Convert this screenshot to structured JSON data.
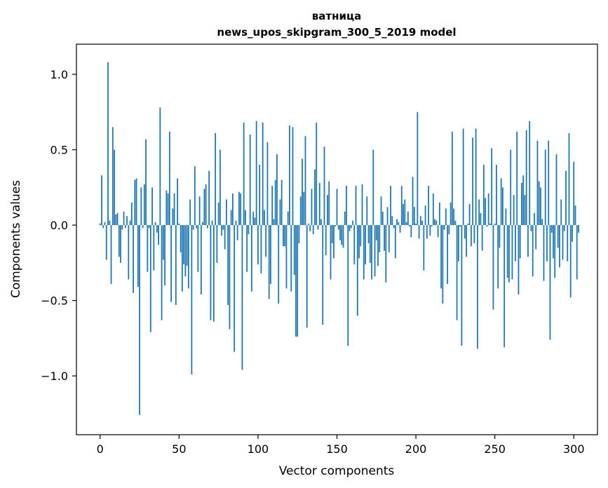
{
  "chart_data": {
    "type": "bar",
    "title": "ватница",
    "subtitle": "news_upos_skipgram_300_5_2019 model",
    "xlabel": "Vector components",
    "ylabel": "Components values",
    "xlim": [
      -15,
      315
    ],
    "ylim": [
      -1.39,
      1.2
    ],
    "xticks": [
      0,
      50,
      100,
      150,
      200,
      250,
      300
    ],
    "xtick_labels": [
      "0",
      "50",
      "100",
      "150",
      "200",
      "250",
      "300"
    ],
    "yticks": [
      -1.0,
      -0.5,
      0.0,
      0.5,
      1.0
    ],
    "ytick_labels": [
      "−1.0",
      "−0.5",
      "0.0",
      "0.5",
      "1.0"
    ],
    "grid": false,
    "bar_color": "#1f77b4",
    "series": [
      {
        "values": [
          0.01,
          0.33,
          -0.02,
          0.02,
          -0.23,
          1.08,
          0.03,
          -0.39,
          0.65,
          0.5,
          0.07,
          0.08,
          -0.21,
          -0.25,
          -0.03,
          0.09,
          -0.02,
          0.06,
          -0.36,
          0.03,
          0.15,
          -0.45,
          0.3,
          0.31,
          -0.41,
          -1.26,
          0.25,
          -0.02,
          0.27,
          0.57,
          -0.31,
          -0.02,
          -0.71,
          0.25,
          -0.3,
          0.02,
          -0.05,
          -0.13,
          0.78,
          -0.63,
          -0.23,
          -0.4,
          0.23,
          0.21,
          0.62,
          -0.51,
          0.11,
          0.21,
          -0.53,
          0.31,
          0.01,
          -0.18,
          -0.44,
          -0.26,
          -0.34,
          -0.27,
          -0.42,
          0.17,
          -0.99,
          -0.03,
          0.39,
          -0.02,
          -0.31,
          0.19,
          -0.46,
          0.02,
          0.24,
          0.27,
          -0.02,
          0.36,
          -0.63,
          0.03,
          -0.64,
          0.61,
          -0.25,
          0.15,
          0.5,
          -0.07,
          -0.03,
          -0.16,
          0.17,
          -0.53,
          -0.69,
          0.1,
          0.21,
          -0.84,
          0.03,
          -0.1,
          0.22,
          0.21,
          -0.96,
          0.68,
          0.1,
          -0.31,
          -0.06,
          0.6,
          -0.44,
          0.09,
          0.05,
          0.69,
          -0.26,
          0.4,
          -0.32,
          0.68,
          0.1,
          -0.21,
          0.55,
          -0.49,
          -0.39,
          0.26,
          0.04,
          0.3,
          0.47,
          -0.52,
          0.17,
          0.3,
          -0.14,
          -0.14,
          -0.42,
          0.09,
          0.66,
          -0.44,
          0.65,
          -0.33,
          -0.74,
          -0.74,
          -0.12,
          0.19,
          0.44,
          0.22,
          0.59,
          -0.68,
          0.01,
          -0.04,
          0.24,
          -0.06,
          0.37,
          0.68,
          -0.03,
          0.28,
          0.04,
          -0.66,
          0.52,
          -0.2,
          0.2,
          0.29,
          -0.36,
          -0.12,
          -0.22,
          -0.01,
          0.24,
          -0.03,
          -0.1,
          -0.13,
          -0.15,
          0.09,
          0.26,
          -0.8,
          -0.04,
          -0.02,
          0.03,
          -0.26,
          0.26,
          -0.6,
          -0.22,
          -0.14,
          0.27,
          -0.36,
          -0.26,
          0.19,
          -0.12,
          -0.25,
          -0.36,
          0.5,
          -0.34,
          -0.1,
          -0.27,
          -0.18,
          0.19,
          0.09,
          -0.17,
          -0.38,
          0.12,
          -0.18,
          0.26,
          0.06,
          -0.02,
          -0.22,
          0.04,
          0.02,
          -0.05,
          0.26,
          0.14,
          0.17,
          0.02,
          0.09,
          -0.01,
          -0.08,
          0.32,
          0.12,
          0.01,
          0.75,
          -0.09,
          0.06,
          0.03,
          -0.3,
          0.13,
          -0.09,
          0.26,
          -0.07,
          -0.01,
          0.21,
          0.04,
          0.03,
          -0.08,
          0.15,
          -0.42,
          -0.52,
          -0.03,
          0.11,
          -0.39,
          -0.06,
          0.15,
          0.62,
          0.11,
          0.03,
          -0.63,
          -0.24,
          -0.01,
          -0.8,
          0.64,
          -0.09,
          -0.21,
          0.01,
          0.14,
          -0.14,
          0.58,
          -0.12,
          0.64,
          -0.82,
          0.17,
          0.08,
          -0.17,
          0.4,
          0.18,
          -0.01,
          0.21,
          0.01,
          0.51,
          -0.56,
          0.01,
          0.4,
          -0.42,
          -0.15,
          0.31,
          0.25,
          -0.81,
          0.11,
          -0.35,
          -0.38,
          0.5,
          -0.36,
          0.2,
          -0.24,
          0.62,
          -0.46,
          -0.22,
          0.28,
          0.33,
          0.2,
          0.63,
          -0.21,
          0.69,
          -0.04,
          -0.34,
          0.08,
          -0.16,
          0.56,
          0.29,
          0.25,
          0.04,
          -0.37,
          0.5,
          -0.24,
          0.56,
          -0.76,
          -0.05,
          -0.22,
          -0.35,
          0.47,
          -0.15,
          -0.28,
          0.17,
          -0.23,
          -0.04,
          0.36,
          -0.24,
          0.61,
          -0.48,
          -0.11,
          0.42,
          0.13,
          -0.36,
          -0.05
        ]
      }
    ]
  }
}
